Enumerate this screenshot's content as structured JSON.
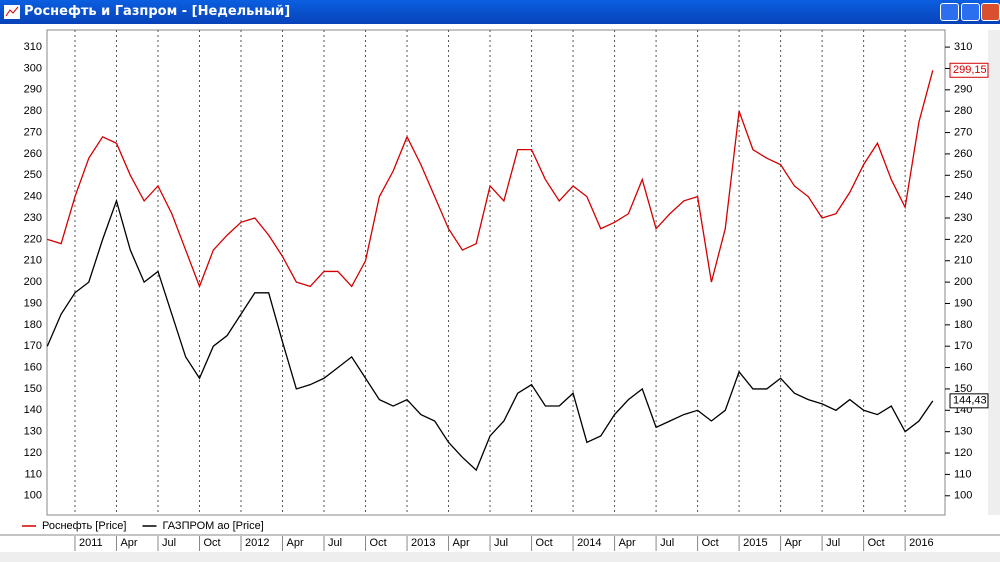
{
  "title": "Роснефть и Газпром - [Недельный]",
  "chart_data": {
    "type": "line",
    "categories": [
      null,
      null,
      "2011",
      null,
      null,
      "Apr",
      null,
      null,
      "Jul",
      null,
      null,
      "Oct",
      null,
      null,
      "2012",
      null,
      null,
      "Apr",
      null,
      null,
      "Jul",
      null,
      null,
      "Oct",
      null,
      null,
      "2013",
      null,
      null,
      "Apr",
      null,
      null,
      "Jul",
      null,
      null,
      "Oct",
      null,
      null,
      "2014",
      null,
      null,
      "Apr",
      null,
      null,
      "Jul",
      null,
      null,
      "Oct",
      null,
      null,
      "2015",
      null,
      null,
      "Apr",
      null,
      null,
      "Jul",
      null,
      null,
      "Oct",
      null,
      null,
      "2016",
      null,
      null
    ],
    "series": [
      {
        "name": "Роснефть [Price]",
        "color": "#d40000",
        "last_value_label": "299,15",
        "values": [
          220,
          218,
          240,
          258,
          268,
          265,
          250,
          238,
          245,
          232,
          215,
          198,
          215,
          222,
          228,
          230,
          222,
          212,
          200,
          198,
          205,
          205,
          198,
          210,
          240,
          252,
          268,
          255,
          240,
          225,
          215,
          218,
          245,
          238,
          262,
          262,
          248,
          238,
          245,
          240,
          225,
          228,
          232,
          248,
          225,
          232,
          238,
          240,
          200,
          225,
          280,
          262,
          258,
          255,
          245,
          240,
          230,
          232,
          242,
          255,
          265,
          248,
          235,
          275,
          299.15
        ]
      },
      {
        "name": "ГАЗПРОМ ао [Price]",
        "color": "#000000",
        "last_value_label": "144,43",
        "values": [
          170,
          185,
          195,
          200,
          220,
          238,
          215,
          200,
          205,
          185,
          165,
          155,
          170,
          175,
          185,
          195,
          195,
          172,
          150,
          152,
          155,
          160,
          165,
          155,
          145,
          142,
          145,
          138,
          135,
          125,
          118,
          112,
          128,
          135,
          148,
          152,
          142,
          142,
          148,
          125,
          128,
          138,
          145,
          150,
          132,
          135,
          138,
          140,
          135,
          140,
          158,
          150,
          150,
          155,
          148,
          145,
          143,
          140,
          145,
          140,
          138,
          142,
          130,
          135,
          144.43
        ]
      }
    ],
    "ylim": [
      91,
      318
    ],
    "yticks": [
      100,
      110,
      120,
      130,
      140,
      150,
      160,
      170,
      180,
      190,
      200,
      210,
      220,
      230,
      240,
      250,
      260,
      270,
      280,
      290,
      300,
      310
    ],
    "grid": true
  }
}
